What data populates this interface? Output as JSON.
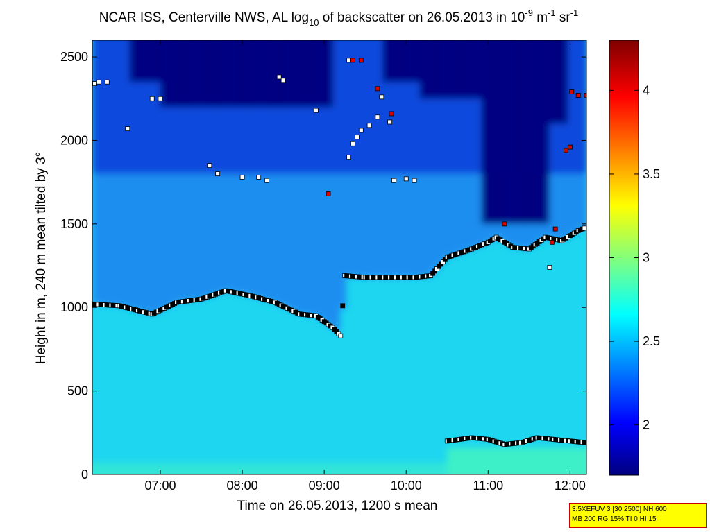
{
  "chart_data": {
    "type": "heatmap",
    "title": {
      "part1": "NCAR ISS, Centerville NWS, AL log",
      "sub": "10",
      "part2": " of backscatter on 26.05.2013 in 10",
      "sup1": "-9",
      "part3": " m",
      "sup2": "-1",
      "part4": " sr",
      "sup3": "-1"
    },
    "xlabel": "Time on 26.05.2013, 1200 s mean",
    "ylabel": "Height in m, 240 m mean tilted by 3°",
    "x_ticks": [
      "07:00",
      "08:00",
      "09:00",
      "10:00",
      "11:00",
      "12:00"
    ],
    "y_ticks": [
      "0",
      "500",
      "1000",
      "1500",
      "2000",
      "2500"
    ],
    "xlim_hours": [
      6.17,
      12.2
    ],
    "ylim": [
      0,
      2600
    ],
    "colorbar": {
      "range": [
        1.7,
        4.3
      ],
      "ticks": [
        "2",
        "2.5",
        "3",
        "3.5",
        "4"
      ]
    },
    "colors": {
      "dark_navy": "#000080",
      "mid_blue": "#0a4adc",
      "light_blue": "#1e8ef0",
      "cyan": "#1ad8f0",
      "green_cyan": "#3ef0c8",
      "marker_dark": "#000000",
      "marker_white": "#ffffff",
      "marker_red": "#e00000"
    },
    "layers": {
      "lower_layer_top": [
        [
          6.17,
          1020
        ],
        [
          6.5,
          1010
        ],
        [
          6.9,
          960
        ],
        [
          7.2,
          1030
        ],
        [
          7.5,
          1050
        ],
        [
          7.8,
          1100
        ],
        [
          8.1,
          1070
        ],
        [
          8.4,
          1030
        ],
        [
          8.7,
          960
        ],
        [
          8.9,
          950
        ],
        [
          9.1,
          880
        ],
        [
          9.2,
          830
        ],
        [
          9.25,
          1190
        ],
        [
          9.5,
          1180
        ],
        [
          9.8,
          1180
        ],
        [
          10.1,
          1180
        ],
        [
          10.3,
          1190
        ],
        [
          10.5,
          1300
        ],
        [
          10.8,
          1350
        ],
        [
          11.0,
          1390
        ],
        [
          11.1,
          1420
        ],
        [
          11.3,
          1360
        ],
        [
          11.5,
          1350
        ],
        [
          11.7,
          1420
        ],
        [
          11.9,
          1400
        ],
        [
          12.1,
          1460
        ],
        [
          12.2,
          1480
        ]
      ],
      "surface_layer": [
        [
          10.5,
          200
        ],
        [
          10.8,
          220
        ],
        [
          11.0,
          210
        ],
        [
          11.2,
          180
        ],
        [
          11.4,
          190
        ],
        [
          11.6,
          220
        ],
        [
          11.8,
          210
        ],
        [
          12.0,
          200
        ],
        [
          12.2,
          190
        ]
      ],
      "cloud_points": [
        [
          6.2,
          2340
        ],
        [
          6.25,
          2350
        ],
        [
          6.35,
          2350
        ],
        [
          6.9,
          2250
        ],
        [
          7.0,
          2250
        ],
        [
          6.6,
          2070
        ],
        [
          7.6,
          1850
        ],
        [
          7.7,
          1800
        ],
        [
          8.0,
          1780
        ],
        [
          8.2,
          1780
        ],
        [
          8.3,
          1760
        ],
        [
          8.45,
          2380
        ],
        [
          8.5,
          2360
        ],
        [
          8.9,
          2180
        ],
        [
          9.3,
          2480
        ],
        [
          9.35,
          1980
        ],
        [
          9.4,
          2020
        ],
        [
          9.45,
          2060
        ],
        [
          9.55,
          2090
        ],
        [
          9.65,
          2140
        ],
        [
          9.7,
          2260
        ],
        [
          9.8,
          2110
        ],
        [
          9.85,
          1760
        ],
        [
          10.0,
          1770
        ],
        [
          10.1,
          1760
        ],
        [
          9.3,
          1900
        ],
        [
          11.75,
          1240
        ]
      ],
      "cloud_points_red": [
        [
          9.05,
          1680
        ],
        [
          9.35,
          2480
        ],
        [
          9.45,
          2480
        ],
        [
          9.65,
          2310
        ],
        [
          9.82,
          2160
        ],
        [
          11.2,
          1500
        ],
        [
          11.78,
          1390
        ],
        [
          11.82,
          1470
        ],
        [
          11.95,
          1940
        ],
        [
          12.0,
          1960
        ],
        [
          12.02,
          2290
        ],
        [
          12.1,
          2270
        ],
        [
          12.2,
          2270
        ]
      ]
    }
  },
  "infobox": {
    "line1": "3.5XEFUV 3 [30 2500] NH 600",
    "line2": "MB 200 RG 15% TI 0 HI 15"
  }
}
